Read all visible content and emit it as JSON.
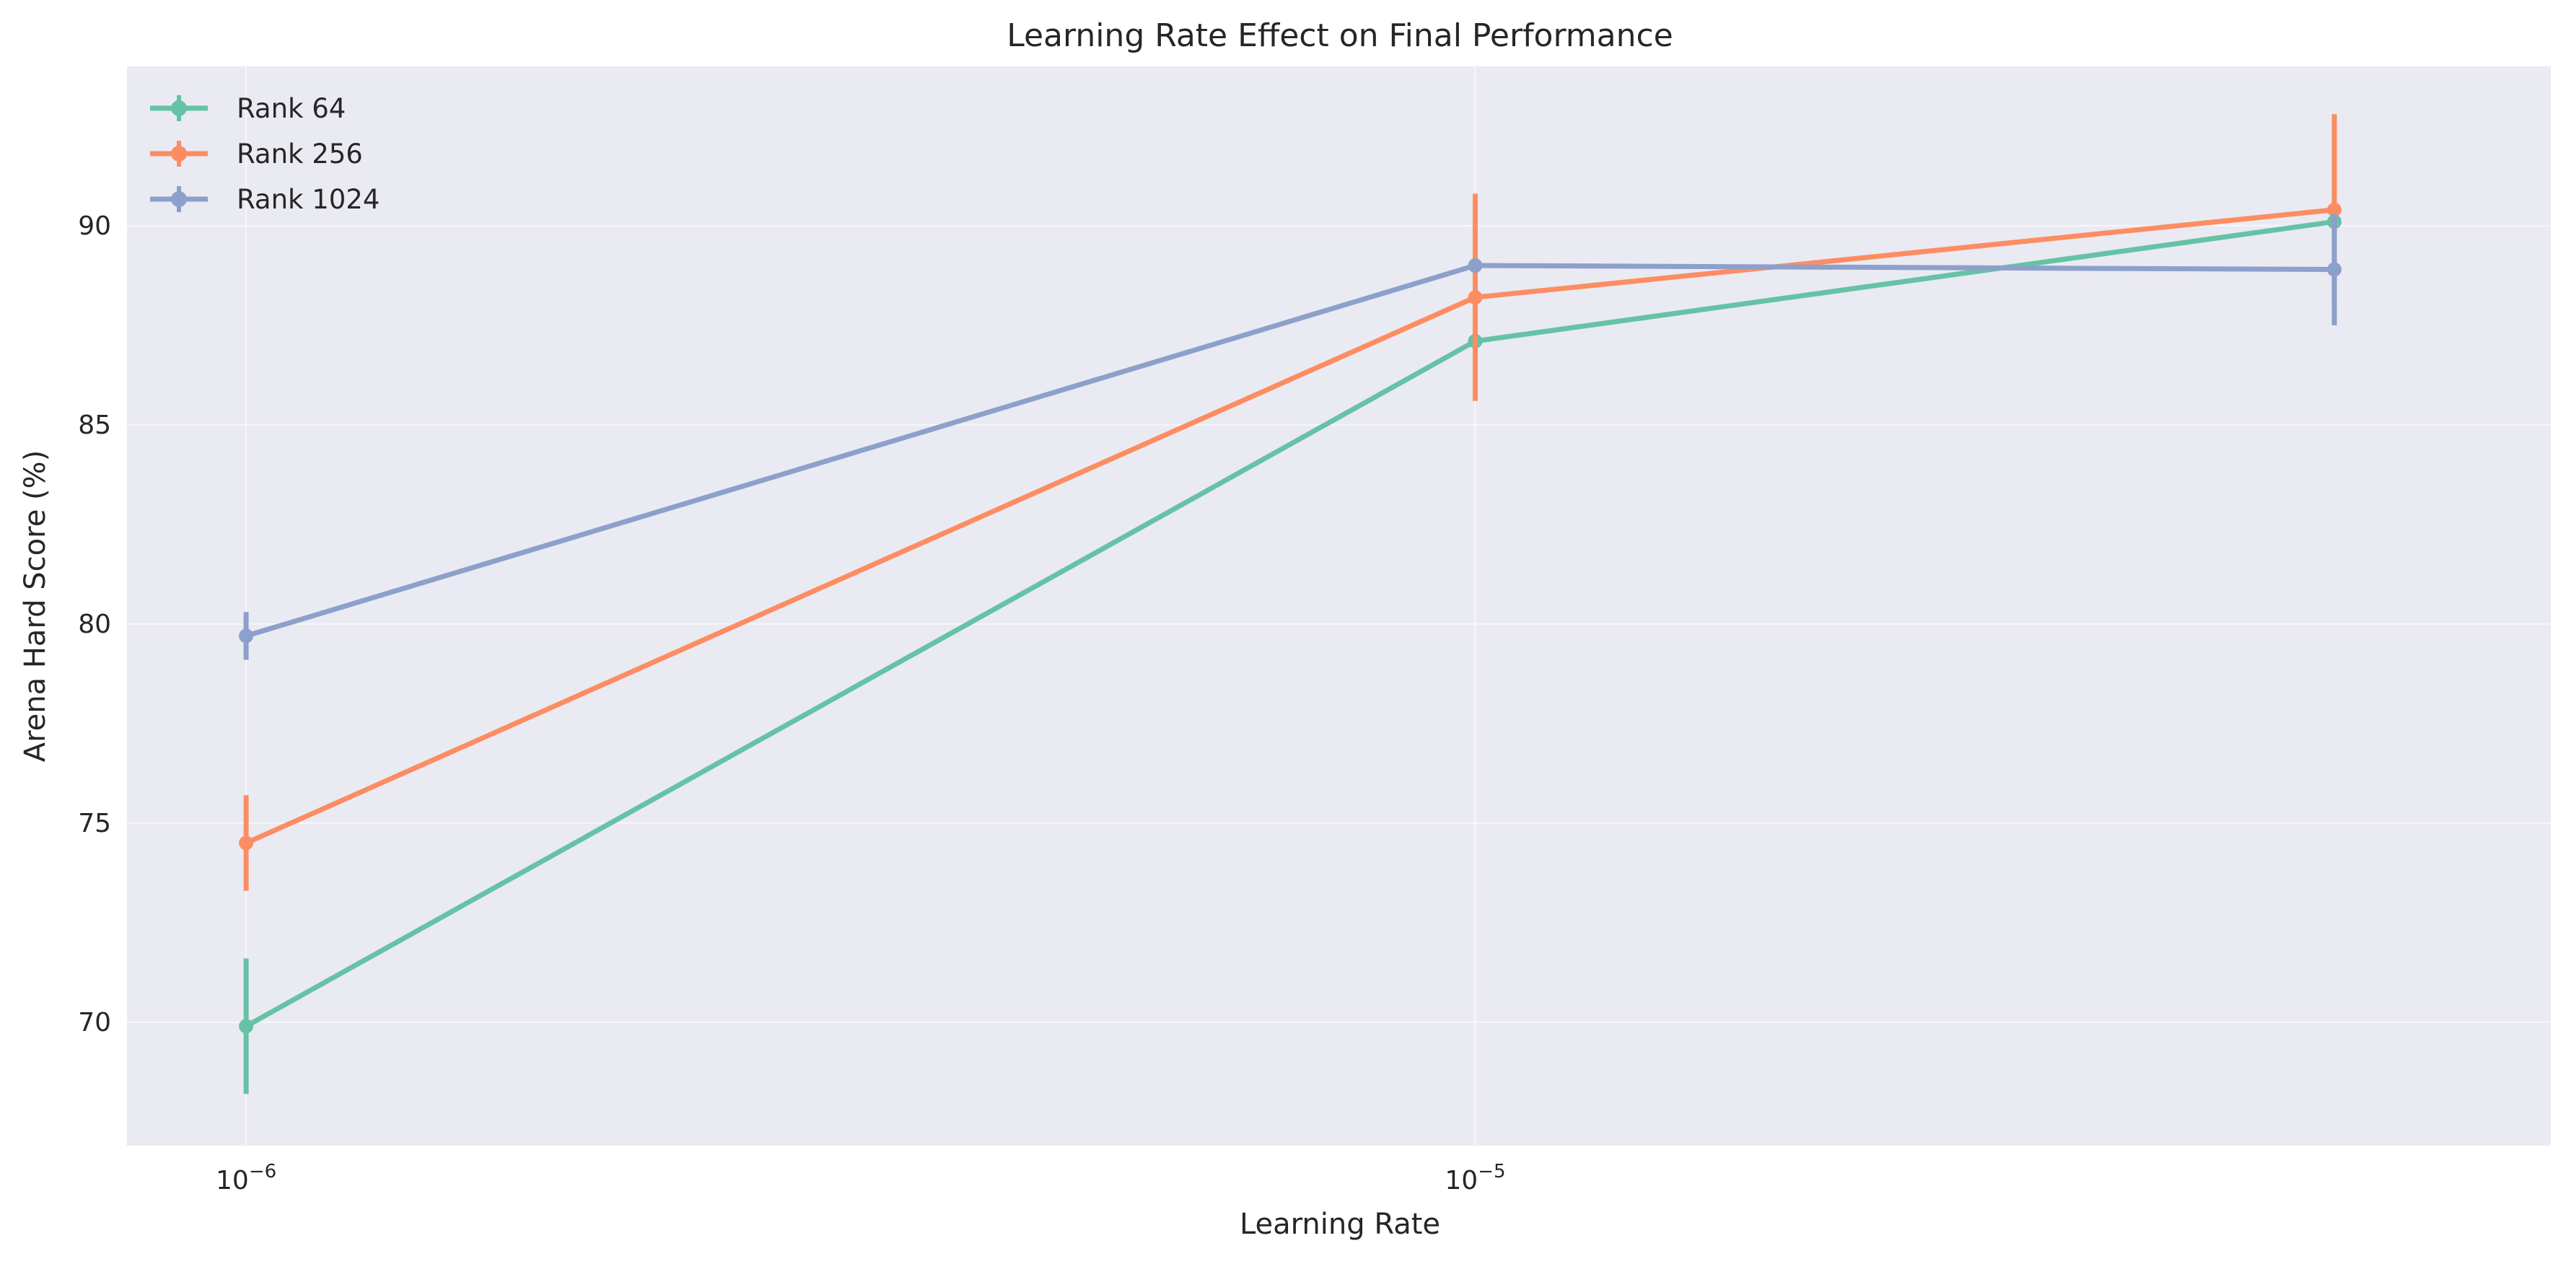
{
  "chart_data": {
    "type": "line",
    "title": "Learning Rate Effect on Final Performance",
    "xlabel": "Learning Rate",
    "ylabel": "Arena Hard Score (%)",
    "x_scale": "log",
    "x": [
      1e-06,
      1e-05,
      5e-05
    ],
    "xlim": [
      8e-07,
      7.5e-05
    ],
    "ylim": [
      66.9,
      94.0
    ],
    "x_ticks": [
      {
        "value": 1e-06,
        "base": "10",
        "exp": "−6"
      },
      {
        "value": 1e-05,
        "base": "10",
        "exp": "−5"
      }
    ],
    "y_ticks": [
      70,
      75,
      80,
      85,
      90
    ],
    "grid": true,
    "legend_position": "top-left",
    "series": [
      {
        "name": "Rank 64",
        "color": "#66c2a5",
        "values": [
          69.9,
          87.1,
          90.1
        ],
        "errors": [
          1.7,
          0.0,
          0.0
        ]
      },
      {
        "name": "Rank 256",
        "color": "#fc8d62",
        "values": [
          74.5,
          88.2,
          90.4
        ],
        "errors": [
          1.2,
          2.6,
          2.4
        ]
      },
      {
        "name": "Rank 1024",
        "color": "#8da0cb",
        "values": [
          79.7,
          89.0,
          88.9
        ],
        "errors": [
          0.6,
          0.0,
          1.4
        ]
      }
    ]
  }
}
